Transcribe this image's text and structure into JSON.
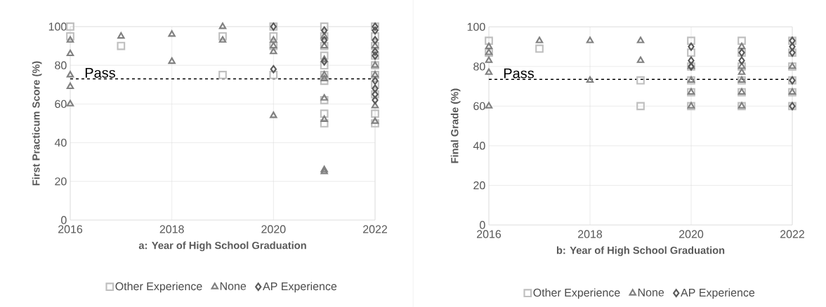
{
  "chart_data": [
    {
      "type": "scatter",
      "xlabel": "a: Year of High School Graduation",
      "ylabel": "First Practicum Score (%)",
      "xlim": [
        2016,
        2022
      ],
      "xticks": [
        2016,
        2018,
        2020,
        2022
      ],
      "ylim": [
        0,
        100
      ],
      "yticks": [
        0,
        20,
        40,
        60,
        80,
        100
      ],
      "grid": true,
      "legend": "bottom",
      "ref_lines": [
        {
          "axis": "y",
          "value": 73,
          "label": "Pass",
          "color": "#000000",
          "line_style": "dashed"
        }
      ],
      "series": [
        {
          "name": "Other Experience",
          "color": "#bfbfbf",
          "marker": "square",
          "x": [
            2016,
            2016,
            2017,
            2019,
            2019,
            2020,
            2020,
            2020,
            2020,
            2021,
            2021,
            2021,
            2021,
            2021,
            2021,
            2021,
            2021,
            2021,
            2021,
            2022,
            2022,
            2022,
            2022,
            2022,
            2022,
            2022,
            2022,
            2022,
            2022
          ],
          "values": [
            100,
            95,
            90,
            95,
            75,
            100,
            95,
            90,
            75,
            100,
            95,
            90,
            85,
            80,
            75,
            72,
            62,
            55,
            50,
            100,
            95,
            90,
            85,
            80,
            75,
            70,
            65,
            55,
            50
          ]
        },
        {
          "name": "None",
          "color": "#808080",
          "marker": "triangle",
          "x": [
            2016,
            2016,
            2016,
            2016,
            2016,
            2017,
            2018,
            2018,
            2019,
            2019,
            2020,
            2020,
            2020,
            2020,
            2021,
            2021,
            2021,
            2021,
            2021,
            2021,
            2021,
            2021,
            2021,
            2022,
            2022,
            2022,
            2022,
            2022
          ],
          "values": [
            93,
            86,
            75,
            69,
            60,
            95,
            96,
            82,
            100,
            93,
            93,
            90,
            87,
            54,
            95,
            90,
            83,
            75,
            73,
            63,
            52,
            26,
            25,
            90,
            80,
            75,
            59,
            51
          ]
        },
        {
          "name": "AP Experience",
          "color": "#595959",
          "marker": "diamond",
          "x": [
            2020,
            2020,
            2021,
            2021,
            2021,
            2022,
            2022,
            2022,
            2022,
            2022,
            2022,
            2022,
            2022,
            2022
          ],
          "values": [
            100,
            78,
            98,
            93,
            82,
            100,
            98,
            93,
            87,
            85,
            72,
            68,
            65,
            62
          ]
        }
      ]
    },
    {
      "type": "scatter",
      "xlabel": "b: Year of High School Graduation",
      "ylabel": "Final Grade (%)",
      "xlim": [
        2016,
        2022
      ],
      "xticks": [
        2016,
        2018,
        2020,
        2022
      ],
      "ylim": [
        0,
        100
      ],
      "yticks": [
        0,
        20,
        40,
        60,
        80,
        100
      ],
      "grid": true,
      "legend": "bottom",
      "ref_lines": [
        {
          "axis": "y",
          "value": 73.5,
          "label": "Pass",
          "color": "#000000",
          "line_style": "dashed"
        }
      ],
      "series": [
        {
          "name": "Other Experience",
          "color": "#bfbfbf",
          "marker": "square",
          "x": [
            2016,
            2016,
            2017,
            2019,
            2019,
            2020,
            2020,
            2020,
            2020,
            2020,
            2020,
            2021,
            2021,
            2021,
            2021,
            2021,
            2021,
            2022,
            2022,
            2022,
            2022,
            2022,
            2022
          ],
          "values": [
            93,
            87,
            89,
            73,
            60,
            93,
            87,
            80,
            73,
            67,
            60,
            93,
            87,
            80,
            73,
            67,
            60,
            93,
            87,
            80,
            73,
            67,
            60
          ]
        },
        {
          "name": "None",
          "color": "#808080",
          "marker": "triangle",
          "x": [
            2016,
            2016,
            2016,
            2016,
            2016,
            2017,
            2018,
            2018,
            2019,
            2019,
            2020,
            2020,
            2020,
            2020,
            2021,
            2021,
            2021,
            2021,
            2021,
            2021,
            2022,
            2022
          ],
          "values": [
            90,
            87,
            83,
            77,
            60,
            93,
            93,
            73,
            93,
            83,
            80,
            73,
            67,
            60,
            90,
            80,
            77,
            73,
            67,
            60,
            80,
            67
          ]
        },
        {
          "name": "AP Experience",
          "color": "#595959",
          "marker": "diamond",
          "x": [
            2020,
            2020,
            2020,
            2021,
            2021,
            2022,
            2022,
            2022,
            2022,
            2022
          ],
          "values": [
            90,
            83,
            80,
            87,
            83,
            93,
            90,
            87,
            73,
            60
          ]
        }
      ]
    }
  ]
}
